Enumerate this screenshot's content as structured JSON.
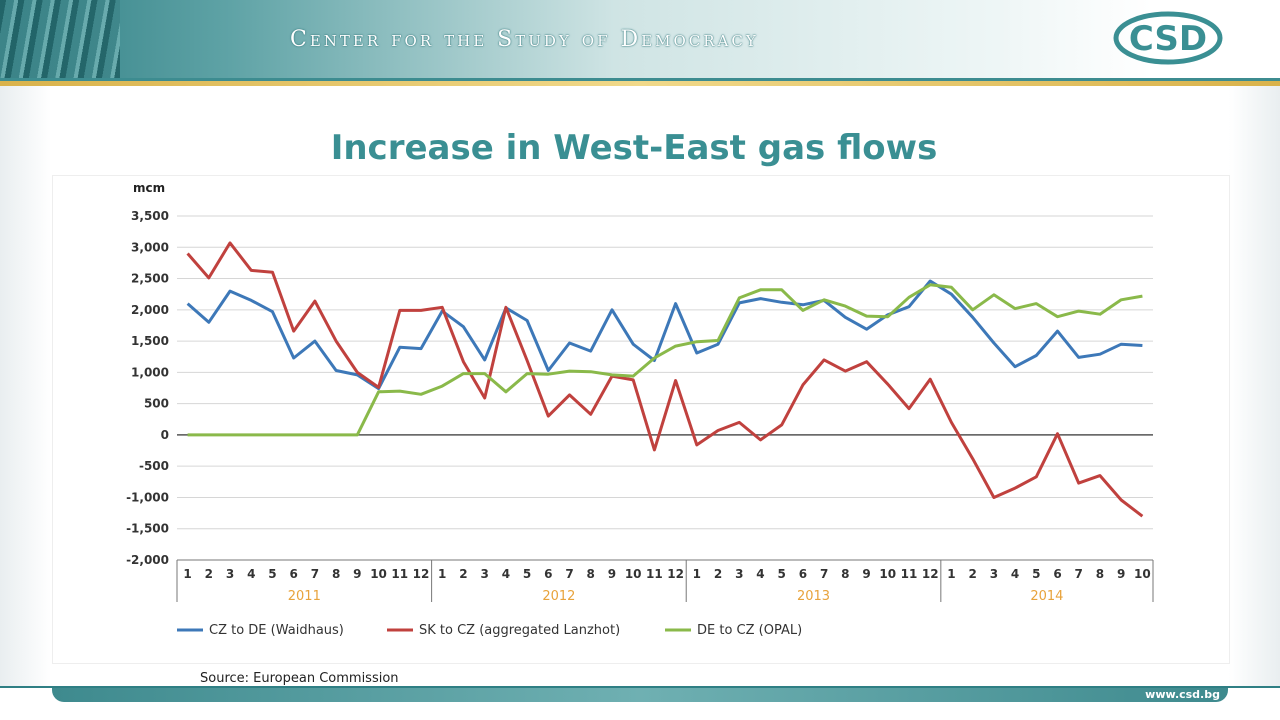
{
  "header": {
    "org_name": "Center for the Study of Democracy",
    "logo_text": "CSD"
  },
  "slide": {
    "title": "Increase in West-East gas flows",
    "source": "Source: European Commission",
    "website": "www.csd.bg"
  },
  "colors": {
    "teal": "#3a8f93",
    "gold": "#d9b24a"
  },
  "chart_data": {
    "type": "line",
    "title": "",
    "xlabel": "",
    "ylabel": "mcm",
    "ylim": [
      -2000,
      3500
    ],
    "yticks": [
      3500,
      3000,
      2500,
      2000,
      1500,
      1000,
      500,
      0,
      -500,
      -1000,
      -1500,
      -2000
    ],
    "ytick_labels": [
      "3,500",
      "3,000",
      "2,500",
      "2,000",
      "1,500",
      "1,000",
      "500",
      "0",
      "-500",
      "-1,000",
      "-1,500",
      "-2,000"
    ],
    "grid": true,
    "legend": "bottom",
    "months": [
      "1",
      "2",
      "3",
      "4",
      "5",
      "6",
      "7",
      "8",
      "9",
      "10",
      "11",
      "12",
      "1",
      "2",
      "3",
      "4",
      "5",
      "6",
      "7",
      "8",
      "9",
      "10",
      "11",
      "12",
      "1",
      "2",
      "3",
      "4",
      "5",
      "6",
      "7",
      "8",
      "9",
      "10",
      "11",
      "12",
      "1",
      "2",
      "3",
      "4",
      "5",
      "6",
      "7",
      "8",
      "9",
      "10"
    ],
    "years": [
      {
        "label": "2011",
        "count": 12
      },
      {
        "label": "2012",
        "count": 12
      },
      {
        "label": "2013",
        "count": 12
      },
      {
        "label": "2014",
        "count": 10
      }
    ],
    "series": [
      {
        "name": "CZ to DE (Waidhaus)",
        "color": "#3d78b8",
        "values": [
          2100,
          1800,
          2300,
          2150,
          1970,
          1230,
          1500,
          1030,
          960,
          740,
          1400,
          1380,
          1980,
          1730,
          1200,
          2030,
          1830,
          1030,
          1470,
          1340,
          2000,
          1450,
          1190,
          2100,
          1310,
          1450,
          2110,
          2180,
          2120,
          2080,
          2150,
          1880,
          1690,
          1920,
          2050,
          2460,
          2250,
          1880,
          1470,
          1090,
          1270,
          1660,
          1240,
          1290,
          1450,
          1430
        ]
      },
      {
        "name": "SK to CZ (aggregated Lanzhot)",
        "color": "#c0413e",
        "values": [
          2900,
          2510,
          3070,
          2630,
          2600,
          1660,
          2140,
          1500,
          1000,
          760,
          1990,
          1990,
          2040,
          1170,
          590,
          2040,
          1190,
          300,
          640,
          330,
          940,
          880,
          -240,
          870,
          -160,
          70,
          200,
          -80,
          160,
          800,
          1200,
          1020,
          1170,
          810,
          420,
          890,
          200,
          -380,
          -1000,
          -850,
          -670,
          20,
          -770,
          -650,
          -1040,
          -1300
        ]
      },
      {
        "name": "DE to CZ (OPAL)",
        "color": "#8ab94a",
        "values": [
          0,
          0,
          0,
          0,
          0,
          0,
          0,
          0,
          0,
          690,
          700,
          650,
          780,
          980,
          980,
          690,
          980,
          970,
          1020,
          1010,
          960,
          940,
          1230,
          1420,
          1490,
          1510,
          2190,
          2320,
          2320,
          1990,
          2160,
          2060,
          1900,
          1890,
          2200,
          2400,
          2360,
          2000,
          2240,
          2020,
          2100,
          1890,
          1980,
          1930,
          2160,
          2220
        ]
      }
    ]
  }
}
